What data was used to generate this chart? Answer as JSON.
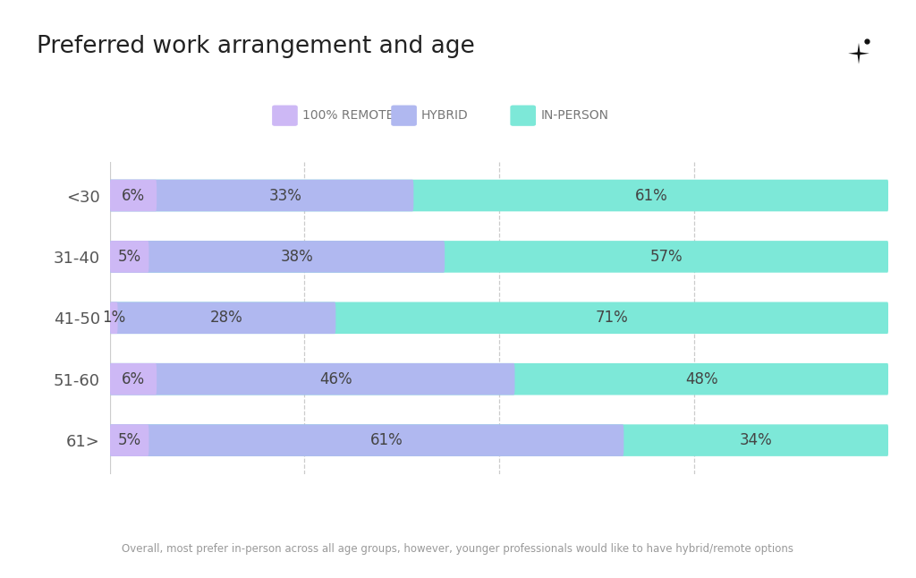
{
  "title": "Preferred work arrangement and age",
  "subtitle": "Overall, most prefer in-person across all age groups, however, younger professionals would like to have hybrid/remote options",
  "categories": [
    "<30",
    "31-40",
    "41-50",
    "51-60",
    "61>"
  ],
  "remote": [
    6,
    5,
    1,
    6,
    5
  ],
  "hybrid": [
    33,
    38,
    28,
    46,
    61
  ],
  "inperson": [
    61,
    57,
    71,
    48,
    34
  ],
  "color_remote": "#cdb8f5",
  "color_hybrid": "#b0b8f0",
  "color_inperson": "#7de8d8",
  "background_color": "#ffffff",
  "title_fontsize": 19,
  "label_fontsize": 12,
  "legend_fontsize": 10,
  "bar_height": 0.52,
  "xlim": [
    0,
    100
  ],
  "grid_lines": [
    25,
    50,
    75
  ]
}
